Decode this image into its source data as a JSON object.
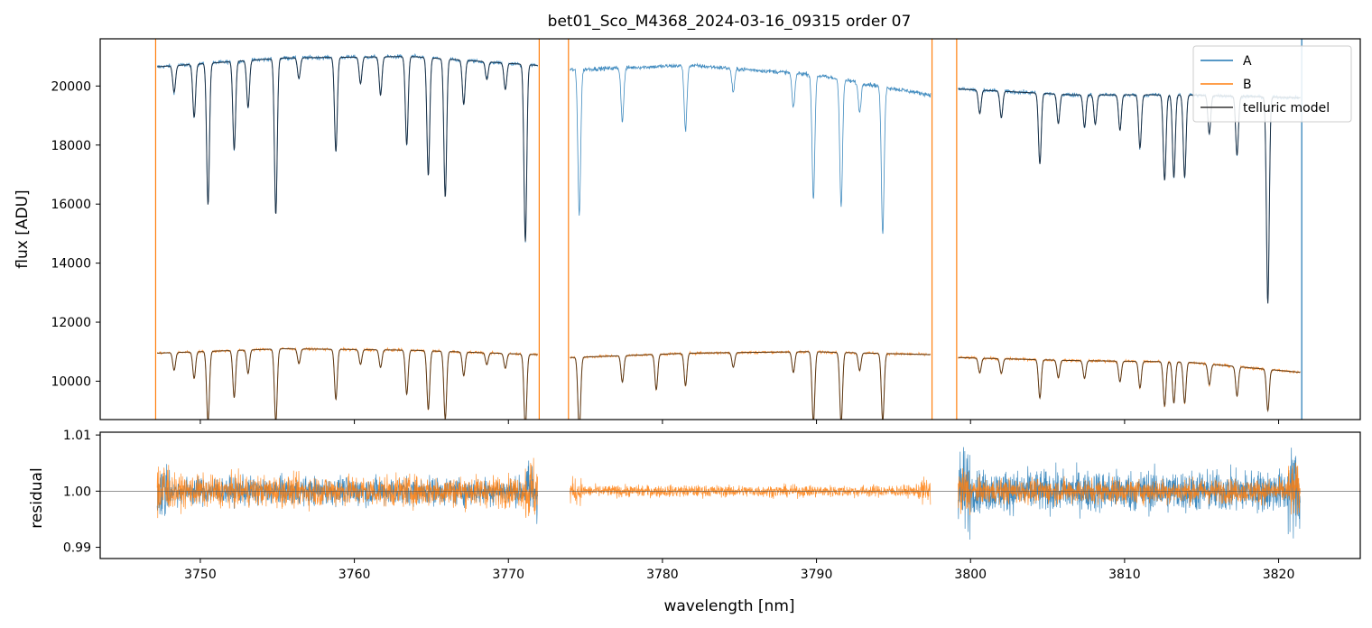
{
  "chart_data": {
    "type": "line",
    "title": "bet01_Sco_M4368_2024-03-16_09315  order 07",
    "xlabel": "wavelength [nm]",
    "top_panel": {
      "ylabel": "flux [ADU]",
      "xlim": [
        3743.5,
        3825.3
      ],
      "ylim": [
        8700,
        21600
      ],
      "yticks": [
        10000,
        12000,
        14000,
        16000,
        18000,
        20000
      ],
      "ytick_labels": [
        "10000",
        "12000",
        "14000",
        "16000",
        "18000",
        "20000"
      ]
    },
    "bottom_panel": {
      "ylabel": "residual",
      "xlim": [
        3743.5,
        3825.3
      ],
      "ylim": [
        0.988,
        1.0105
      ],
      "yticks": [
        0.99,
        1.0,
        1.01
      ],
      "ytick_labels": [
        "0.99",
        "1.00",
        "1.01"
      ],
      "reference_line": 1.0
    },
    "xticks": [
      3750,
      3760,
      3770,
      3780,
      3790,
      3800,
      3810,
      3820
    ],
    "xtick_labels": [
      "3750",
      "3760",
      "3770",
      "3780",
      "3790",
      "3800",
      "3810",
      "3820"
    ],
    "legend": {
      "position": "top-right",
      "entries": [
        {
          "label": "A",
          "color": "#1f77b4"
        },
        {
          "label": "B",
          "color": "#ff7f0e"
        },
        {
          "label": "telluric model",
          "color": "#333333"
        }
      ]
    },
    "orange_vertical_lines": [
      3747.1,
      3772.0,
      3773.9,
      3797.5,
      3799.1
    ],
    "blue_vertical_lines": [
      3821.5
    ],
    "series": [
      {
        "name": "A",
        "color": "#1f77b4",
        "segments": [
          {
            "x0": 3747.2,
            "x1": 3771.9,
            "continuum": [
              20650,
              20950,
              21000,
              20700
            ],
            "model": true
          },
          {
            "x0": 3774.0,
            "x1": 3797.4,
            "continuum": [
              20550,
              20700,
              20400,
              19700
            ],
            "model": false
          },
          {
            "x0": 3799.2,
            "x1": 3821.4,
            "continuum": [
              19900,
              19700,
              19700,
              19600
            ],
            "model": true
          }
        ],
        "lines": [
          [
            3750.5,
            4800
          ],
          [
            3749.6,
            1800
          ],
          [
            3748.3,
            900
          ],
          [
            3752.2,
            3000
          ],
          [
            3753.1,
            1600
          ],
          [
            3754.9,
            5300
          ],
          [
            3756.4,
            700
          ],
          [
            3758.8,
            3200
          ],
          [
            3760.4,
            900
          ],
          [
            3761.7,
            1300
          ],
          [
            3763.4,
            3000
          ],
          [
            3764.8,
            4000
          ],
          [
            3765.9,
            4700
          ],
          [
            3767.1,
            1500
          ],
          [
            3768.6,
            600
          ],
          [
            3771.1,
            6000
          ],
          [
            3769.8,
            900
          ],
          [
            3774.6,
            4900
          ],
          [
            3777.4,
            1800
          ],
          [
            3781.5,
            2200
          ],
          [
            3784.6,
            800
          ],
          [
            3788.5,
            1200
          ],
          [
            3789.8,
            4200
          ],
          [
            3791.6,
            4300
          ],
          [
            3794.3,
            5000
          ],
          [
            3792.8,
            1000
          ],
          [
            3800.6,
            800
          ],
          [
            3802.0,
            900
          ],
          [
            3804.5,
            2400
          ],
          [
            3805.7,
            1000
          ],
          [
            3807.4,
            1100
          ],
          [
            3808.1,
            1000
          ],
          [
            3809.7,
            1200
          ],
          [
            3811.0,
            1800
          ],
          [
            3812.6,
            2900
          ],
          [
            3813.2,
            2800
          ],
          [
            3813.9,
            2800
          ],
          [
            3815.5,
            1300
          ],
          [
            3817.3,
            2000
          ],
          [
            3819.3,
            7000
          ]
        ]
      },
      {
        "name": "B",
        "color": "#ff7f0e",
        "segments": [
          {
            "x0": 3747.2,
            "x1": 3771.9,
            "continuum": [
              10950,
              11100,
              11050,
              10900
            ],
            "model": true
          },
          {
            "x0": 3774.0,
            "x1": 3797.4,
            "continuum": [
              10800,
              10950,
              11000,
              10900
            ],
            "model": true
          },
          {
            "x0": 3799.2,
            "x1": 3821.4,
            "continuum": [
              10800,
              10700,
              10650,
              10300
            ],
            "model": true
          }
        ],
        "lines": [
          [
            3750.5,
            2400
          ],
          [
            3749.6,
            900
          ],
          [
            3748.3,
            600
          ],
          [
            3752.2,
            1600
          ],
          [
            3753.1,
            800
          ],
          [
            3754.9,
            2500
          ],
          [
            3756.4,
            500
          ],
          [
            3758.8,
            1700
          ],
          [
            3760.4,
            500
          ],
          [
            3761.7,
            600
          ],
          [
            3763.4,
            1500
          ],
          [
            3764.8,
            2000
          ],
          [
            3765.9,
            2300
          ],
          [
            3767.1,
            800
          ],
          [
            3768.6,
            400
          ],
          [
            3771.1,
            2500
          ],
          [
            3769.8,
            500
          ],
          [
            3774.6,
            2500
          ],
          [
            3777.4,
            900
          ],
          [
            3779.6,
            1200
          ],
          [
            3781.5,
            1100
          ],
          [
            3784.6,
            500
          ],
          [
            3788.5,
            700
          ],
          [
            3789.8,
            2400
          ],
          [
            3791.6,
            2400
          ],
          [
            3794.3,
            2300
          ],
          [
            3792.8,
            600
          ],
          [
            3800.6,
            500
          ],
          [
            3802.0,
            500
          ],
          [
            3804.5,
            1300
          ],
          [
            3805.7,
            600
          ],
          [
            3807.4,
            600
          ],
          [
            3809.7,
            700
          ],
          [
            3811.0,
            900
          ],
          [
            3812.6,
            1500
          ],
          [
            3813.2,
            1400
          ],
          [
            3813.9,
            1400
          ],
          [
            3815.5,
            700
          ],
          [
            3817.3,
            1000
          ],
          [
            3819.3,
            1400
          ]
        ]
      }
    ],
    "residuals": [
      {
        "name": "A",
        "color": "#1f77b4",
        "ranges": [
          [
            3747.2,
            3771.9,
            0.004
          ],
          [
            3799.2,
            3821.4,
            0.006
          ]
        ]
      },
      {
        "name": "B",
        "color": "#ff7f0e",
        "ranges": [
          [
            3747.2,
            3771.9,
            0.0045
          ],
          [
            3774.0,
            3797.4,
            0.0017
          ],
          [
            3799.2,
            3821.4,
            0.0035
          ]
        ]
      }
    ]
  }
}
